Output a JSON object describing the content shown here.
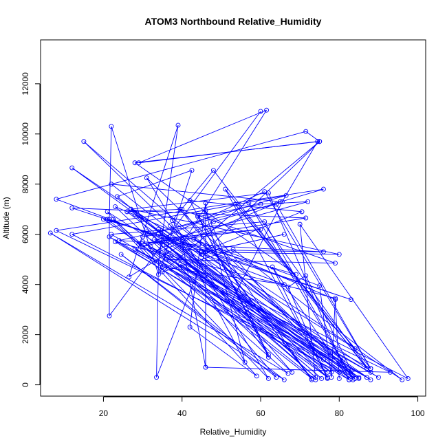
{
  "chart_data": {
    "type": "line",
    "title": "ATOM3 Northbound Relative_Humidity",
    "xlabel": "Relative_Humidity",
    "ylabel": "Altitude (m)",
    "xlim": [
      4,
      102
    ],
    "ylim": [
      -450,
      13750
    ],
    "xticks": [
      20,
      40,
      60,
      80,
      100
    ],
    "yticks": [
      0,
      2000,
      4000,
      6000,
      8000,
      10000,
      12000
    ],
    "grid": false,
    "color": "#0000ff",
    "marker": "open-circle",
    "series": [
      {
        "points": [
          [
            60,
            10900
          ],
          [
            21.5,
            2750
          ],
          [
            21.5,
            6600
          ],
          [
            22,
            10300
          ],
          [
            34,
            4400
          ],
          [
            42.5,
            8550
          ],
          [
            23.5,
            7500
          ],
          [
            78,
            500
          ],
          [
            20,
            6600
          ],
          [
            69,
            4400
          ],
          [
            28,
            8850
          ],
          [
            75,
            9700
          ],
          [
            45,
            5200
          ],
          [
            22,
            8000
          ],
          [
            65,
            7300
          ],
          [
            34,
            5300
          ],
          [
            85,
            300
          ],
          [
            12,
            8650
          ],
          [
            87,
            650
          ],
          [
            48,
            8550
          ],
          [
            37.5,
            6550
          ],
          [
            81,
            1000
          ],
          [
            37,
            6350
          ],
          [
            62,
            1200
          ],
          [
            42,
            7350
          ],
          [
            70.5,
            6900
          ],
          [
            45,
            5300
          ],
          [
            80,
            5200
          ],
          [
            27,
            7000
          ],
          [
            77,
            500
          ],
          [
            21.5,
            5900
          ],
          [
            83,
            550
          ],
          [
            15,
            9700
          ],
          [
            77,
            300
          ],
          [
            36,
            5600
          ],
          [
            75.5,
            250
          ],
          [
            35,
            5700
          ],
          [
            74,
            300
          ],
          [
            33,
            5800
          ],
          [
            60,
            6200
          ],
          [
            29,
            5600
          ],
          [
            71.5,
            6650
          ],
          [
            12,
            7050
          ],
          [
            83,
            3400
          ],
          [
            34,
            6000
          ],
          [
            30,
            5900
          ],
          [
            66.5,
            7550
          ],
          [
            12,
            6000
          ],
          [
            80,
            500
          ],
          [
            26,
            6900
          ],
          [
            40,
            7000
          ],
          [
            73,
            200
          ],
          [
            44,
            6700
          ],
          [
            60,
            7200
          ],
          [
            72,
            7300
          ],
          [
            30,
            5500
          ],
          [
            61,
            7700
          ],
          [
            88,
            650
          ],
          [
            33,
            5300
          ],
          [
            48,
            6500
          ],
          [
            76,
            7800
          ],
          [
            8,
            6150
          ],
          [
            76,
            1000
          ],
          [
            44,
            6750
          ],
          [
            62,
            1100
          ],
          [
            46,
            6950
          ],
          [
            56,
            900
          ],
          [
            40,
            5700
          ],
          [
            46,
            700
          ],
          [
            93,
            500
          ],
          [
            28,
            5400
          ],
          [
            87,
            300
          ],
          [
            39.5,
            4800
          ],
          [
            90,
            300
          ],
          [
            36,
            5300
          ],
          [
            35,
            4700
          ],
          [
            66,
            4000
          ],
          [
            8,
            7400
          ],
          [
            71.5,
            10100
          ],
          [
            75,
            9700
          ],
          [
            35,
            4500
          ],
          [
            53,
            5400
          ],
          [
            96,
            200
          ],
          [
            43,
            5800
          ],
          [
            75,
            3950
          ],
          [
            78,
            300
          ],
          [
            79,
            3450
          ],
          [
            23,
            5700
          ],
          [
            82.5,
            200
          ],
          [
            63,
            4700
          ],
          [
            77,
            250
          ],
          [
            67,
            3900
          ],
          [
            71.5,
            4350
          ],
          [
            84,
            250
          ],
          [
            22,
            6000
          ],
          [
            61,
            6500
          ],
          [
            83.5,
            200
          ],
          [
            57,
            7250
          ],
          [
            88,
            500
          ],
          [
            53.5,
            7200
          ],
          [
            84,
            1450
          ],
          [
            27,
            7000
          ],
          [
            62,
            7650
          ],
          [
            82.5,
            200
          ],
          [
            40,
            5400
          ],
          [
            76,
            5300
          ],
          [
            24,
            5750
          ],
          [
            64,
            7200
          ],
          [
            88,
            650
          ],
          [
            51,
            7800
          ],
          [
            77,
            300
          ],
          [
            36,
            5000
          ],
          [
            79,
            4850
          ],
          [
            39.5,
            7000
          ],
          [
            73,
            250
          ],
          [
            21,
            6600
          ],
          [
            31,
            6100
          ],
          [
            85,
            250
          ],
          [
            32,
            5500
          ],
          [
            97.5,
            250
          ],
          [
            70,
            6400
          ],
          [
            74,
            200
          ],
          [
            30,
            5700
          ],
          [
            83,
            250
          ],
          [
            34,
            6200
          ],
          [
            88,
            200
          ],
          [
            21,
            6900
          ],
          [
            62,
            250
          ],
          [
            31,
            8250
          ],
          [
            84,
            250
          ],
          [
            28,
            6800
          ],
          [
            64,
            300
          ],
          [
            24.5,
            5200
          ],
          [
            66,
            200
          ],
          [
            6.5,
            6050
          ],
          [
            67,
            450
          ],
          [
            22.5,
            6600
          ],
          [
            59,
            350
          ],
          [
            42,
            2300
          ],
          [
            46,
            7250
          ],
          [
            46,
            700
          ],
          [
            46,
            5300
          ],
          [
            66,
            6000
          ],
          [
            46,
            5300
          ],
          [
            33.5,
            300
          ],
          [
            34,
            4900
          ],
          [
            39,
            10350
          ],
          [
            26.5,
            4300
          ],
          [
            40,
            5600
          ],
          [
            61.5,
            10950
          ],
          [
            29,
            8850
          ],
          [
            74.5,
            9700
          ],
          [
            65.5,
            7300
          ],
          [
            52.5,
            3300
          ],
          [
            68,
            500
          ],
          [
            23,
            7100
          ],
          [
            79,
            3400
          ],
          [
            80,
            250
          ]
        ]
      }
    ]
  }
}
